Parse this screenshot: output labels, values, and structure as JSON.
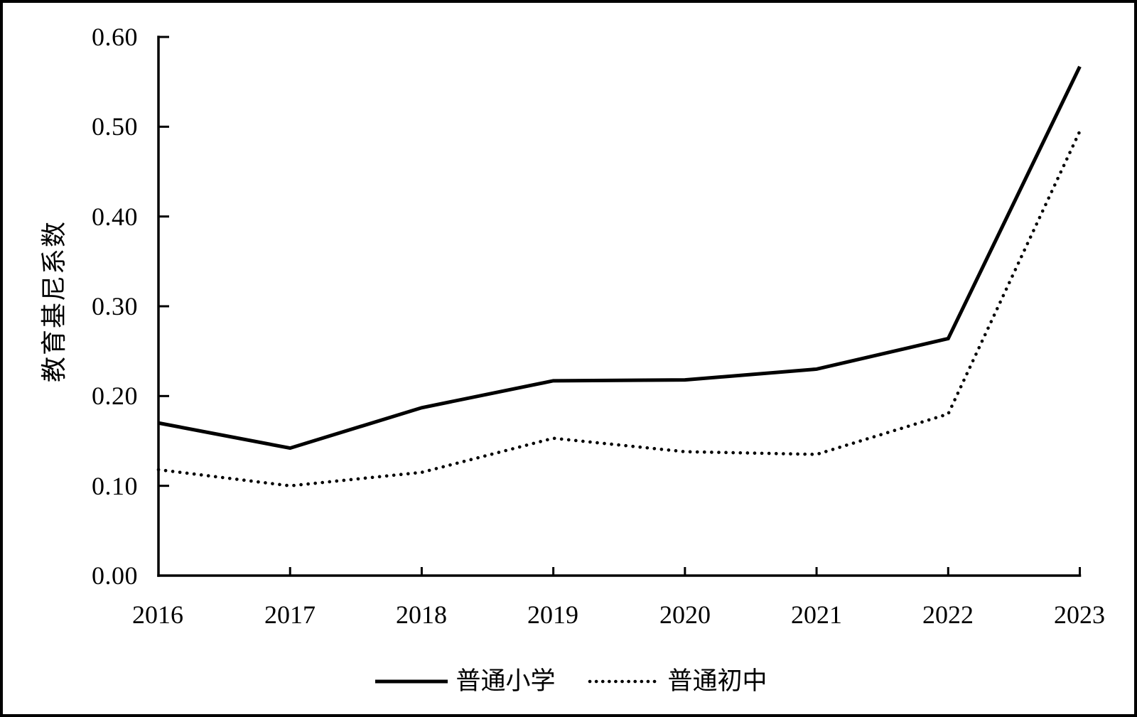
{
  "figure": {
    "background": "#ffffff",
    "border_color": "#000000",
    "ink_color": "#000000"
  },
  "chart_data": {
    "type": "line",
    "title": "",
    "xlabel": "",
    "ylabel": "教育基尼系数",
    "categories": [
      "2016",
      "2017",
      "2018",
      "2019",
      "2020",
      "2021",
      "2022",
      "2023"
    ],
    "series": [
      {
        "name": "普通小学",
        "style": "solid",
        "values": [
          0.17,
          0.142,
          0.187,
          0.217,
          0.218,
          0.23,
          0.264,
          0.567
        ]
      },
      {
        "name": "普通初中",
        "style": "dotted",
        "values": [
          0.118,
          0.1,
          0.115,
          0.153,
          0.138,
          0.135,
          0.18,
          0.495
        ]
      }
    ],
    "ylim": [
      0.0,
      0.6
    ],
    "ytick_labels": [
      "0.00",
      "0.10",
      "0.20",
      "0.30",
      "0.40",
      "0.50",
      "0.60"
    ],
    "grid": false,
    "legend_position": "bottom-center"
  }
}
